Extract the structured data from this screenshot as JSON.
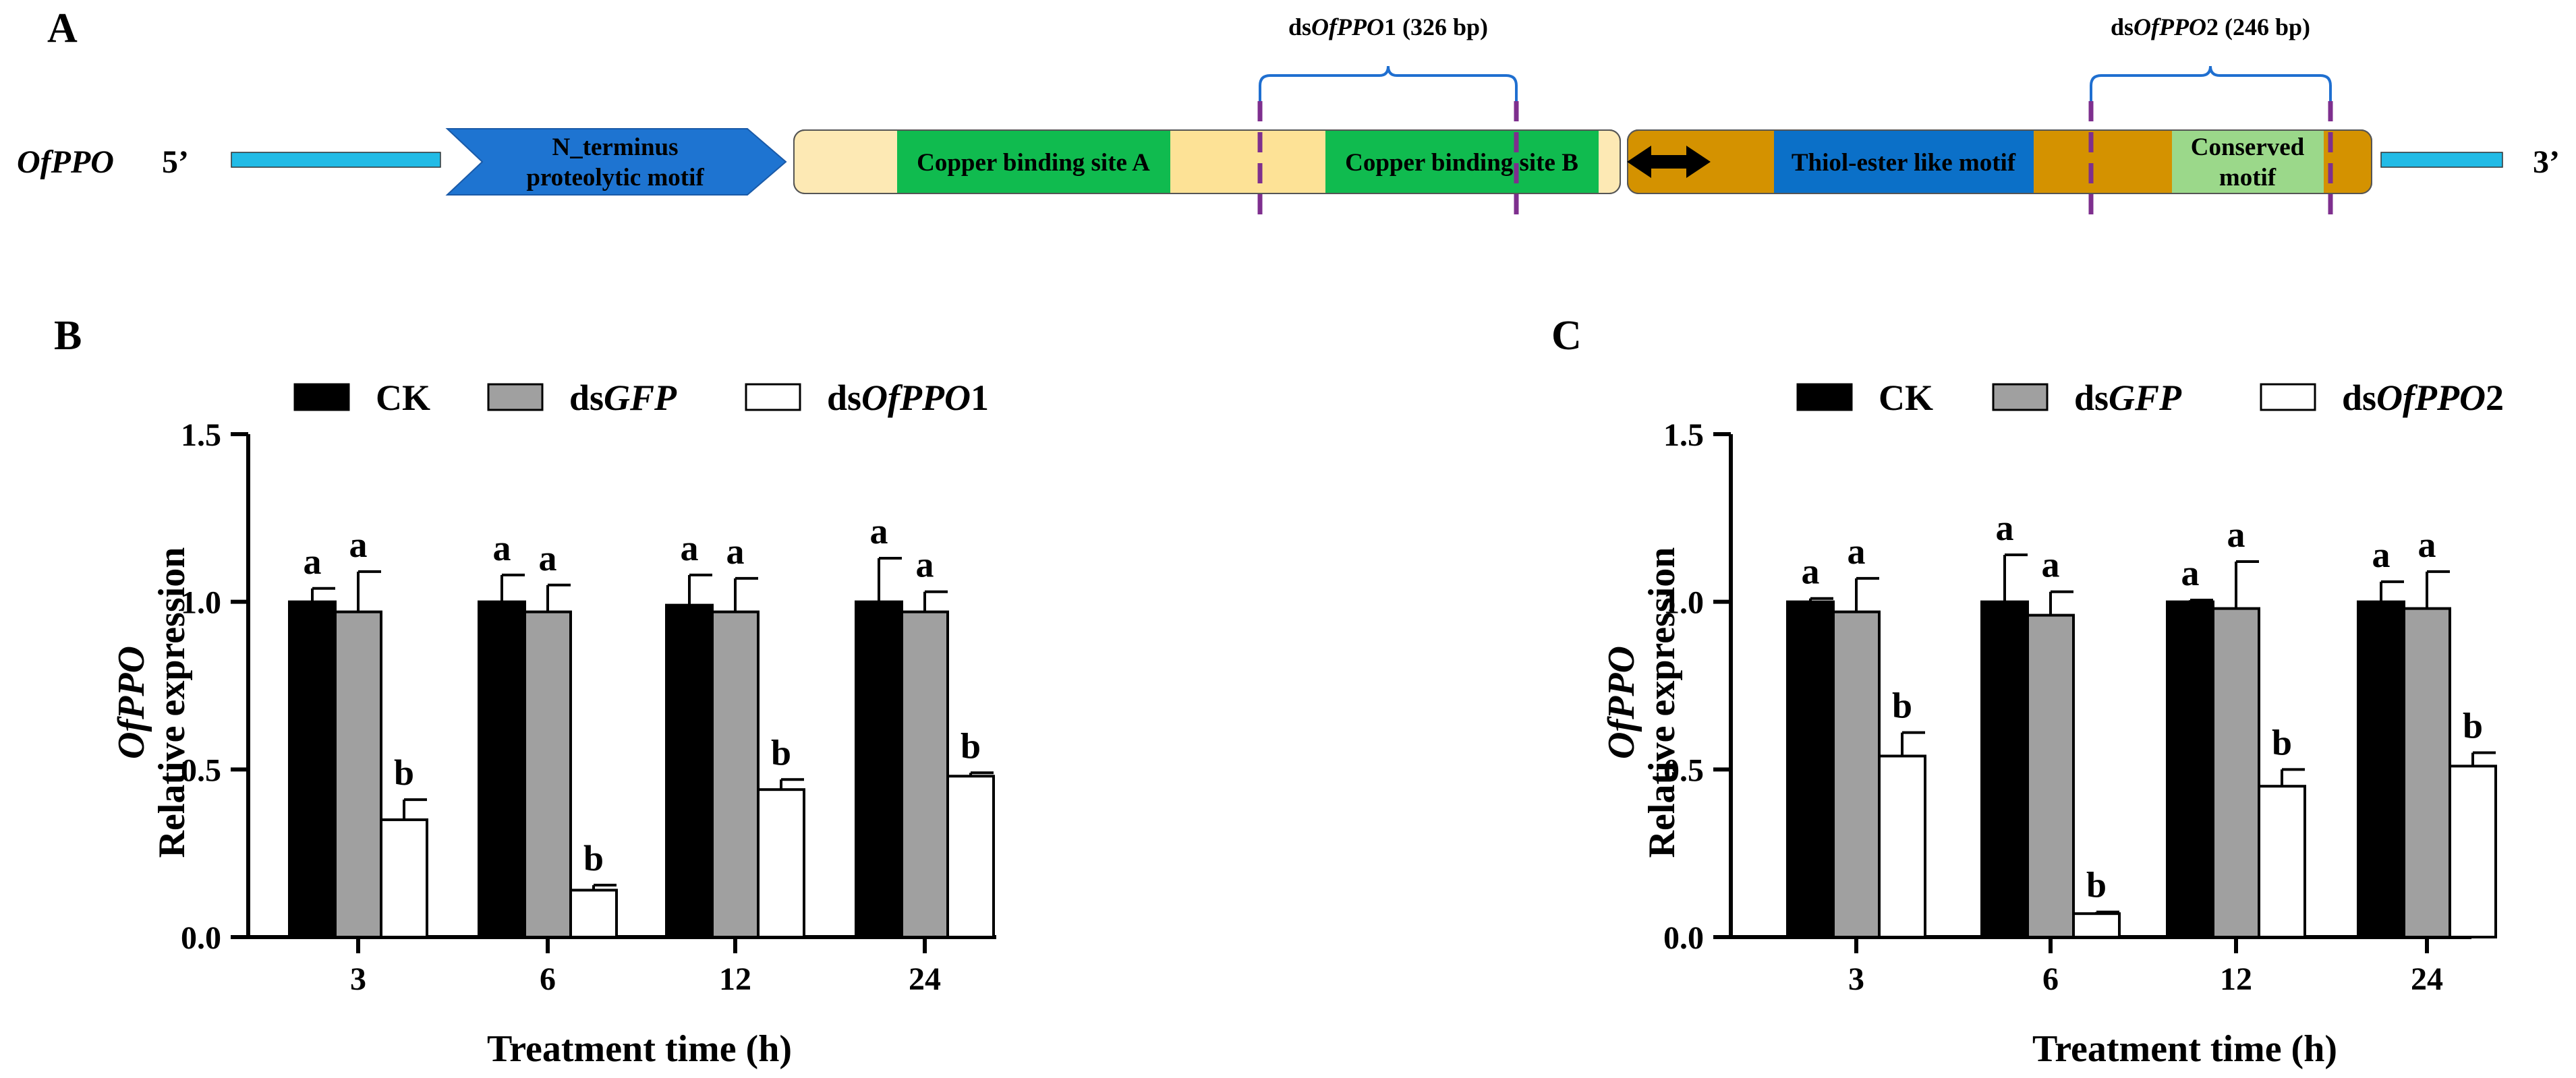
{
  "colors": {
    "ck": "#000000",
    "dsgfp": "#a0a0a0",
    "dsppo": "#ffffff",
    "arrow_blue": "#1e74d1",
    "utr_blue": "#22bbe6",
    "light_yellow": "#fde9b4",
    "yellow": "#fde296",
    "green": "#10bb4f",
    "brown": "#d49200",
    "thiol_blue": "#0b70c8",
    "light_green": "#9bd88a",
    "purple": "#7e2f8e",
    "bracket": "#1f6fd0"
  },
  "panelA": {
    "label": "A",
    "gene": "OfPPO",
    "five": "5’",
    "three": "3’",
    "nterm_line1": "N_terminus",
    "nterm_line2": "proteolytic motif",
    "cuA": "Copper binding site A",
    "cuB": "Copper binding site B",
    "thiol": "Thiol-ester like motif",
    "cons_line1": "Conserved",
    "cons_line2": "motif",
    "ds1_pre": "ds",
    "ds1_italic": "OfPPO",
    "ds1_post": "1 (326 bp)",
    "ds2_pre": "ds",
    "ds2_italic": "OfPPO",
    "ds2_post": "2 (246 bp)"
  },
  "chart_data": [
    {
      "type": "bar",
      "panel": "B",
      "ylabel_gene": "OfPPO",
      "ylabel": "Relative expression",
      "xlabel": "Treatment time (h)",
      "ylim": [
        0,
        1.5
      ],
      "yticks": [
        "0.0",
        "0.5",
        "1.0",
        "1.5"
      ],
      "categories": [
        "3",
        "6",
        "12",
        "24"
      ],
      "series": [
        {
          "name": "CK",
          "name_pre": "CK",
          "name_italic": "",
          "name_post": "",
          "color_key": "ck",
          "values": [
            1.0,
            1.0,
            0.99,
            1.0
          ],
          "errors": [
            0.04,
            0.08,
            0.09,
            0.13
          ],
          "letters": [
            "a",
            "a",
            "a",
            "a"
          ]
        },
        {
          "name": "dsGFP",
          "name_pre": "ds",
          "name_italic": "GFP",
          "name_post": "",
          "color_key": "dsgfp",
          "values": [
            0.97,
            0.97,
            0.97,
            0.97
          ],
          "errors": [
            0.12,
            0.08,
            0.1,
            0.06
          ],
          "letters": [
            "a",
            "a",
            "a",
            "a"
          ]
        },
        {
          "name": "dsOfPPO1",
          "name_pre": "ds",
          "name_italic": "OfPPO",
          "name_post": "1",
          "color_key": "dsppo",
          "values": [
            0.35,
            0.14,
            0.44,
            0.48
          ],
          "errors": [
            0.06,
            0.015,
            0.03,
            0.01
          ],
          "letters": [
            "b",
            "b",
            "b",
            "b"
          ]
        }
      ]
    },
    {
      "type": "bar",
      "panel": "C",
      "ylabel_gene": "OfPPO",
      "ylabel": "Relative expression",
      "xlabel": "Treatment time (h)",
      "ylim": [
        0,
        1.5
      ],
      "yticks": [
        "0.0",
        "0.5",
        "1.0",
        "1.5"
      ],
      "categories": [
        "3",
        "6",
        "12",
        "24"
      ],
      "series": [
        {
          "name": "CK",
          "name_pre": "CK",
          "name_italic": "",
          "name_post": "",
          "color_key": "ck",
          "values": [
            1.0,
            1.0,
            1.0,
            1.0
          ],
          "errors": [
            0.01,
            0.14,
            0.005,
            0.06
          ],
          "letters": [
            "a",
            "a",
            "a",
            "a"
          ]
        },
        {
          "name": "dsGFP",
          "name_pre": "ds",
          "name_italic": "GFP",
          "name_post": "",
          "color_key": "dsgfp",
          "values": [
            0.97,
            0.96,
            0.98,
            0.98
          ],
          "errors": [
            0.1,
            0.07,
            0.14,
            0.11
          ],
          "letters": [
            "a",
            "a",
            "a",
            "a"
          ]
        },
        {
          "name": "dsOfPPO2",
          "name_pre": "ds",
          "name_italic": "OfPPO",
          "name_post": "2",
          "color_key": "dsppo",
          "values": [
            0.54,
            0.07,
            0.45,
            0.51
          ],
          "errors": [
            0.07,
            0.005,
            0.05,
            0.04
          ],
          "letters": [
            "b",
            "b",
            "b",
            "b"
          ]
        }
      ]
    }
  ]
}
